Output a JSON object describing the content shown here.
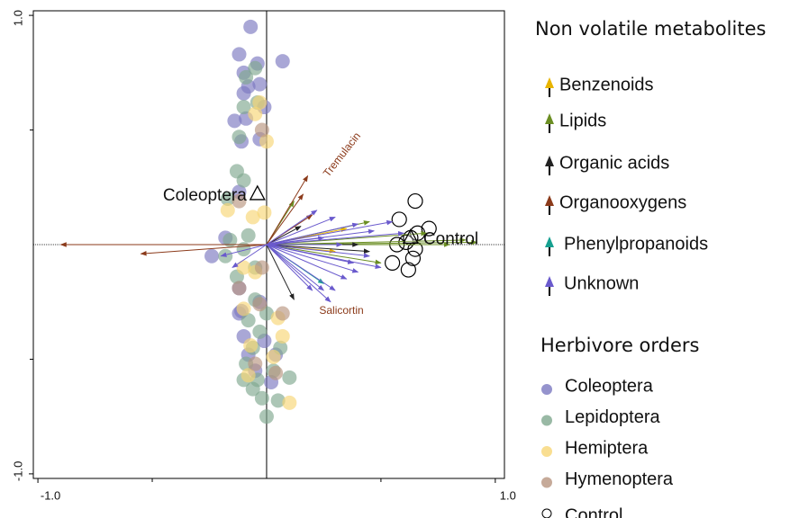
{
  "chart_data": {
    "type": "biplot",
    "xlim": [
      -1.02,
      1.04
    ],
    "ylim": [
      -1.02,
      1.02
    ],
    "xticks": [
      {
        "value": -1,
        "label": "-1.0"
      },
      {
        "value": 1,
        "label": "1.0"
      }
    ],
    "yticks": [
      {
        "value": -1,
        "label": "-1.0"
      },
      {
        "value": 1,
        "label": "1.0"
      }
    ],
    "xminor_ticks": [
      -0.5,
      0.5
    ],
    "yminor_ticks": [
      -0.5,
      0.5
    ],
    "zero_lines": true,
    "arrow_legend_title": "Non volatile metabolites",
    "point_legend_title": "Herbivore orders",
    "arrow_series": [
      {
        "name": "Benzenoids",
        "color": "#e8b400",
        "x": [
          0.3,
          0.35
        ],
        "values": [
          -0.03,
          0.07
        ]
      },
      {
        "name": "Lipids",
        "color": "#6b8e23",
        "x": [
          0.92,
          0.87,
          0.8,
          0.12,
          0.5,
          0.45,
          0.7
        ],
        "values": [
          0.01,
          0.02,
          0.0,
          0.19,
          -0.08,
          0.1,
          0.05
        ]
      },
      {
        "name": "Organic acids",
        "color": "#222222",
        "x": [
          0.12,
          0.4,
          0.15,
          0.45
        ],
        "values": [
          -0.24,
          0.0,
          0.08,
          -0.03
        ]
      },
      {
        "name": "Organooxygens",
        "color": "#8b3a1a",
        "x": [
          -0.9,
          -0.55,
          0.18,
          0.2,
          0.16
        ],
        "values": [
          0.0,
          -0.04,
          0.3,
          0.13,
          0.22
        ]
      },
      {
        "name": "Phenylpropanoids",
        "color": "#16a090",
        "x": [
          0.25
        ],
        "values": [
          -0.17
        ]
      },
      {
        "name": "Unknown",
        "color": "#6a5acd",
        "x": [
          0.55,
          0.6,
          0.4,
          0.35,
          0.3,
          0.25,
          0.2,
          0.45,
          -0.2,
          -0.15,
          0.5,
          0.22,
          0.4,
          0.3,
          0.33,
          0.25,
          0.38,
          0.47,
          0.28
        ],
        "values": [
          0.1,
          0.05,
          0.09,
          -0.15,
          -0.2,
          -0.2,
          -0.2,
          -0.05,
          -0.05,
          -0.1,
          -0.1,
          0.15,
          -0.12,
          0.12,
          0.0,
          0.03,
          -0.08,
          0.06,
          -0.25
        ]
      }
    ],
    "point_series": [
      {
        "name": "Coleoptera",
        "color": "#7b78c0",
        "marker": "filled",
        "x": [
          -0.07,
          -0.12,
          -0.1,
          -0.04,
          0.07,
          -0.08,
          -0.1,
          -0.03,
          -0.14,
          -0.09,
          -0.11,
          -0.03,
          -0.01,
          -0.12,
          -0.18,
          -0.24,
          -0.12,
          -0.11,
          -0.03,
          -0.12,
          -0.1,
          0.04,
          -0.01,
          -0.05,
          -0.08,
          0.02
        ],
        "values": [
          0.95,
          0.83,
          0.75,
          0.79,
          0.8,
          0.69,
          0.66,
          0.7,
          0.54,
          0.55,
          0.45,
          0.46,
          0.6,
          0.23,
          0.03,
          -0.05,
          -0.19,
          -0.29,
          -0.25,
          -0.3,
          -0.4,
          -0.48,
          -0.42,
          -0.55,
          -0.48,
          -0.6
        ]
      },
      {
        "name": "Lepidoptera",
        "color": "#7fa88f",
        "marker": "filled",
        "x": [
          -0.09,
          -0.05,
          -0.1,
          -0.04,
          -0.12,
          -0.13,
          -0.1,
          -0.17,
          -0.16,
          -0.08,
          -0.18,
          -0.1,
          -0.05,
          -0.13,
          -0.05,
          0.0,
          -0.08,
          -0.03,
          -0.06,
          0.06,
          -0.09,
          -0.1,
          -0.04,
          0.03,
          0.1,
          -0.02,
          0.05,
          0.0,
          -0.06
        ],
        "values": [
          0.73,
          0.77,
          0.6,
          0.62,
          0.47,
          0.32,
          0.28,
          0.2,
          0.02,
          0.04,
          -0.05,
          -0.02,
          -0.1,
          -0.14,
          -0.24,
          -0.3,
          -0.33,
          -0.38,
          -0.45,
          -0.45,
          -0.52,
          -0.59,
          -0.59,
          -0.55,
          -0.58,
          -0.67,
          -0.68,
          -0.75,
          -0.63
        ]
      },
      {
        "name": "Hemiptera",
        "color": "#f8d675",
        "marker": "filled",
        "x": [
          -0.17,
          -0.01,
          -0.06,
          -0.1,
          -0.05,
          -0.1,
          0.05,
          -0.07,
          0.07,
          0.03,
          -0.08,
          0.1,
          -0.03,
          -0.05,
          0.0
        ],
        "values": [
          0.15,
          0.14,
          0.12,
          -0.1,
          -0.12,
          -0.28,
          -0.32,
          -0.44,
          -0.4,
          -0.49,
          -0.57,
          -0.69,
          0.62,
          0.57,
          0.45
        ]
      },
      {
        "name": "Hymenoptera",
        "color": "#b89580",
        "marker": "filled",
        "x": [
          -0.12,
          -0.03,
          0.07,
          -0.02,
          -0.12,
          -0.05,
          0.04,
          -0.02
        ],
        "values": [
          -0.19,
          -0.26,
          -0.3,
          0.5,
          0.19,
          -0.52,
          -0.56,
          -0.1
        ]
      },
      {
        "name": "Control",
        "color": "#000000",
        "marker": "open",
        "x": [
          0.65,
          0.58,
          0.71,
          0.63,
          0.61,
          0.57,
          0.65,
          0.64,
          0.62,
          0.55,
          0.66
        ],
        "values": [
          0.19,
          0.11,
          0.07,
          0.03,
          0.01,
          0.0,
          -0.02,
          -0.06,
          -0.11,
          -0.08,
          0.05
        ]
      }
    ],
    "centroids": [
      {
        "label": "Coleoptera",
        "x": -0.04,
        "y": 0.22
      },
      {
        "label": "Control",
        "x": 0.63,
        "y": 0.03
      }
    ],
    "annotations": [
      {
        "text": "Tremulacin",
        "x": 0.26,
        "y": 0.3
      },
      {
        "text": "Salicortin",
        "x": 0.23,
        "y": -0.29
      }
    ]
  }
}
